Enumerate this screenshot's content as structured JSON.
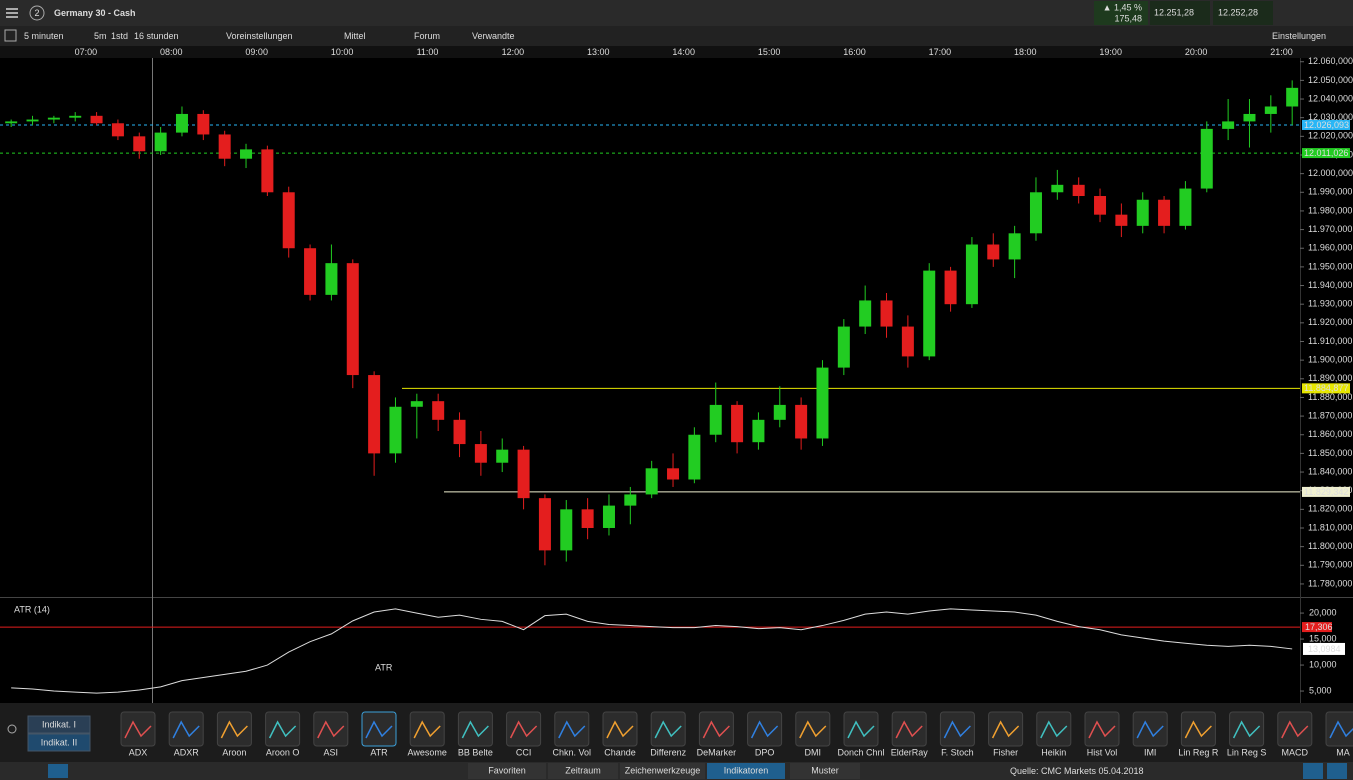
{
  "header": {
    "window_number": "2",
    "instrument": "Germany 30 - Cash",
    "change_pct": "▲ 1,45 %",
    "change_points": "175,48",
    "sell_price": "12.251,28",
    "buy_price": "12.252,28"
  },
  "toolbar": {
    "interval": "5 minuten",
    "quick_5m": "5m",
    "quick_1h": "1std",
    "range": "16 stunden",
    "presets": "Voreinstellungen",
    "size": "Mittel",
    "forum": "Forum",
    "related": "Verwandte",
    "settings": "Einstellungen"
  },
  "chart_data": [
    {
      "type": "candlestick",
      "up_color": "#22cc22",
      "down_color": "#e41e1e",
      "x_labels": [
        "07:00",
        "08:00",
        "09:00",
        "10:00",
        "11:00",
        "12:00",
        "13:00",
        "14:00",
        "15:00",
        "16:00",
        "17:00",
        "18:00",
        "19:00",
        "20:00",
        "21:00"
      ],
      "ylim": [
        11773,
        12062
      ],
      "yticks": [
        {
          "value": 12060,
          "label": "12.060,000"
        },
        {
          "value": 12050,
          "label": "12.050,000"
        },
        {
          "value": 12040,
          "label": "12.040,000"
        },
        {
          "value": 12030,
          "label": "12.030,000"
        },
        {
          "value": 12020,
          "label": "12.020,000"
        },
        {
          "value": 12010,
          "label": "12.010,000"
        },
        {
          "value": 12000,
          "label": "12.000,000"
        },
        {
          "value": 11990,
          "label": "11.990,000"
        },
        {
          "value": 11980,
          "label": "11.980,000"
        },
        {
          "value": 11970,
          "label": "11.970,000"
        },
        {
          "value": 11960,
          "label": "11.960,000"
        },
        {
          "value": 11950,
          "label": "11.950,000"
        },
        {
          "value": 11940,
          "label": "11.940,000"
        },
        {
          "value": 11930,
          "label": "11.930,000"
        },
        {
          "value": 11920,
          "label": "11.920,000"
        },
        {
          "value": 11910,
          "label": "11.910,000"
        },
        {
          "value": 11900,
          "label": "11.900,000"
        },
        {
          "value": 11890,
          "label": "11.890,000"
        },
        {
          "value": 11880,
          "label": "11.880,000"
        },
        {
          "value": 11870,
          "label": "11.870,000"
        },
        {
          "value": 11860,
          "label": "11.860,000"
        },
        {
          "value": 11850,
          "label": "11.850,000"
        },
        {
          "value": 11840,
          "label": "11.840,000"
        },
        {
          "value": 11830,
          "label": "11.830,000"
        },
        {
          "value": 11820,
          "label": "11.820,000"
        },
        {
          "value": 11810,
          "label": "11.810,000"
        },
        {
          "value": 11800,
          "label": "11.800,000"
        },
        {
          "value": 11790,
          "label": "11.790,000"
        },
        {
          "value": 11780,
          "label": "11.780,000"
        }
      ],
      "levels": [
        {
          "value": 12026.093,
          "label": "12.026,093",
          "color": "#29b6f6"
        },
        {
          "value": 12011.026,
          "label": "12.011,026",
          "color": "#22cc22"
        },
        {
          "value": 11884.877,
          "label": "11.884,877",
          "color": "#e6e600"
        },
        {
          "value": 11829.342,
          "label": "11.829,342",
          "color": "#f0f0d0"
        }
      ],
      "candles": [
        [
          12027,
          12029,
          12025,
          12028
        ],
        [
          12028,
          12031,
          12026,
          12029
        ],
        [
          12029,
          12031,
          12027,
          12030
        ],
        [
          12030,
          12033,
          12028,
          12031
        ],
        [
          12031,
          12033,
          12026,
          12027
        ],
        [
          12027,
          12029,
          12018,
          12020
        ],
        [
          12020,
          12022,
          12008,
          12012
        ],
        [
          12012,
          12025,
          12010,
          12022
        ],
        [
          12022,
          12036,
          12020,
          12032
        ],
        [
          12032,
          12034,
          12018,
          12021
        ],
        [
          12021,
          12023,
          12004,
          12008
        ],
        [
          12008,
          12016,
          12003,
          12013
        ],
        [
          12013,
          12015,
          11988,
          11990
        ],
        [
          11990,
          11993,
          11955,
          11960
        ],
        [
          11960,
          11962,
          11932,
          11935
        ],
        [
          11935,
          11962,
          11932,
          11952
        ],
        [
          11952,
          11954,
          11885,
          11892
        ],
        [
          11892,
          11894,
          11838,
          11850
        ],
        [
          11850,
          11880,
          11845,
          11875
        ],
        [
          11875,
          11882,
          11858,
          11878
        ],
        [
          11878,
          11882,
          11862,
          11868
        ],
        [
          11868,
          11872,
          11848,
          11855
        ],
        [
          11855,
          11862,
          11838,
          11845
        ],
        [
          11845,
          11858,
          11840,
          11852
        ],
        [
          11852,
          11854,
          11820,
          11826
        ],
        [
          11826,
          11828,
          11790,
          11798
        ],
        [
          11798,
          11825,
          11792,
          11820
        ],
        [
          11820,
          11826,
          11804,
          11810
        ],
        [
          11810,
          11828,
          11806,
          11822
        ],
        [
          11822,
          11832,
          11812,
          11828
        ],
        [
          11828,
          11846,
          11826,
          11842
        ],
        [
          11842,
          11850,
          11832,
          11836
        ],
        [
          11836,
          11864,
          11834,
          11860
        ],
        [
          11860,
          11888,
          11856,
          11876
        ],
        [
          11876,
          11878,
          11850,
          11856
        ],
        [
          11856,
          11872,
          11852,
          11868
        ],
        [
          11868,
          11886,
          11864,
          11876
        ],
        [
          11876,
          11880,
          11852,
          11858
        ],
        [
          11858,
          11900,
          11854,
          11896
        ],
        [
          11896,
          11922,
          11892,
          11918
        ],
        [
          11918,
          11940,
          11914,
          11932
        ],
        [
          11932,
          11936,
          11912,
          11918
        ],
        [
          11918,
          11924,
          11896,
          11902
        ],
        [
          11902,
          11952,
          11900,
          11948
        ],
        [
          11948,
          11950,
          11926,
          11930
        ],
        [
          11930,
          11966,
          11928,
          11962
        ],
        [
          11962,
          11968,
          11950,
          11954
        ],
        [
          11954,
          11972,
          11944,
          11968
        ],
        [
          11968,
          11998,
          11964,
          11990
        ],
        [
          11990,
          12002,
          11986,
          11994
        ],
        [
          11994,
          11998,
          11984,
          11988
        ],
        [
          11988,
          11992,
          11974,
          11978
        ],
        [
          11978,
          11984,
          11966,
          11972
        ],
        [
          11972,
          11990,
          11968,
          11986
        ],
        [
          11986,
          11988,
          11968,
          11972
        ],
        [
          11972,
          11996,
          11970,
          11992
        ],
        [
          11992,
          12028,
          11990,
          12024
        ],
        [
          12024,
          12040,
          12018,
          12028
        ],
        [
          12028,
          12040,
          12014,
          12032
        ],
        [
          12032,
          12042,
          12022,
          12036
        ],
        [
          12036,
          12050,
          12026,
          12046
        ]
      ]
    },
    {
      "type": "line",
      "title": "ATR (14)",
      "annotation": "ATR",
      "color": "#dddddd",
      "ylim": [
        2.7,
        22.9
      ],
      "yticks": [
        {
          "value": 20,
          "label": "20,000"
        },
        {
          "value": 15,
          "label": "15,000"
        },
        {
          "value": 10,
          "label": "10,000"
        },
        {
          "value": 5,
          "label": "5,000"
        }
      ],
      "levels": [
        {
          "value": 17.306,
          "label": "17,306",
          "color": "#e41e1e"
        }
      ],
      "last": {
        "value": 13.0984,
        "label": "13,0984"
      },
      "values": [
        5.6,
        5.4,
        5.0,
        4.8,
        4.6,
        4.8,
        5.2,
        5.8,
        7.0,
        7.6,
        8.2,
        8.8,
        10.0,
        12.5,
        14.5,
        16.0,
        18.5,
        20.2,
        20.8,
        20.0,
        19.2,
        19.6,
        18.8,
        18.4,
        16.8,
        19.5,
        19.8,
        18.4,
        17.8,
        17.6,
        17.4,
        17.2,
        17.2,
        17.6,
        17.4,
        17.0,
        17.2,
        16.8,
        17.6,
        18.6,
        19.8,
        20.2,
        19.8,
        20.4,
        20.8,
        20.6,
        20.4,
        20.2,
        19.6,
        18.4,
        17.4,
        16.8,
        15.8,
        15.2,
        14.6,
        14.2,
        13.8,
        13.6,
        13.8,
        13.6,
        13.1
      ]
    }
  ],
  "indicator_panel": {
    "tabs": [
      "Indikat. I",
      "Indikat. II"
    ],
    "indicators": [
      "ADX",
      "ADXR",
      "Aroon",
      "Aroon O",
      "ASI",
      "ATR",
      "Awesome",
      "BB Belte",
      "CCI",
      "Chkn. Vol",
      "Chande",
      "Differenz",
      "DeMarker",
      "DPO",
      "DMI",
      "Donch Chnl",
      "ElderRay",
      "F. Stoch",
      "Fisher",
      "Heikin",
      "Hist Vol",
      "IMI",
      "Lin Reg R",
      "Lin Reg S",
      "MACD",
      "MA"
    ]
  },
  "footer": {
    "tabs": [
      "Favoriten",
      "Zeitraum",
      "Zeichenwerkzeuge",
      "Indikatoren",
      "Muster"
    ],
    "source": "Quelle: CMC Markets 05.04.2018"
  }
}
